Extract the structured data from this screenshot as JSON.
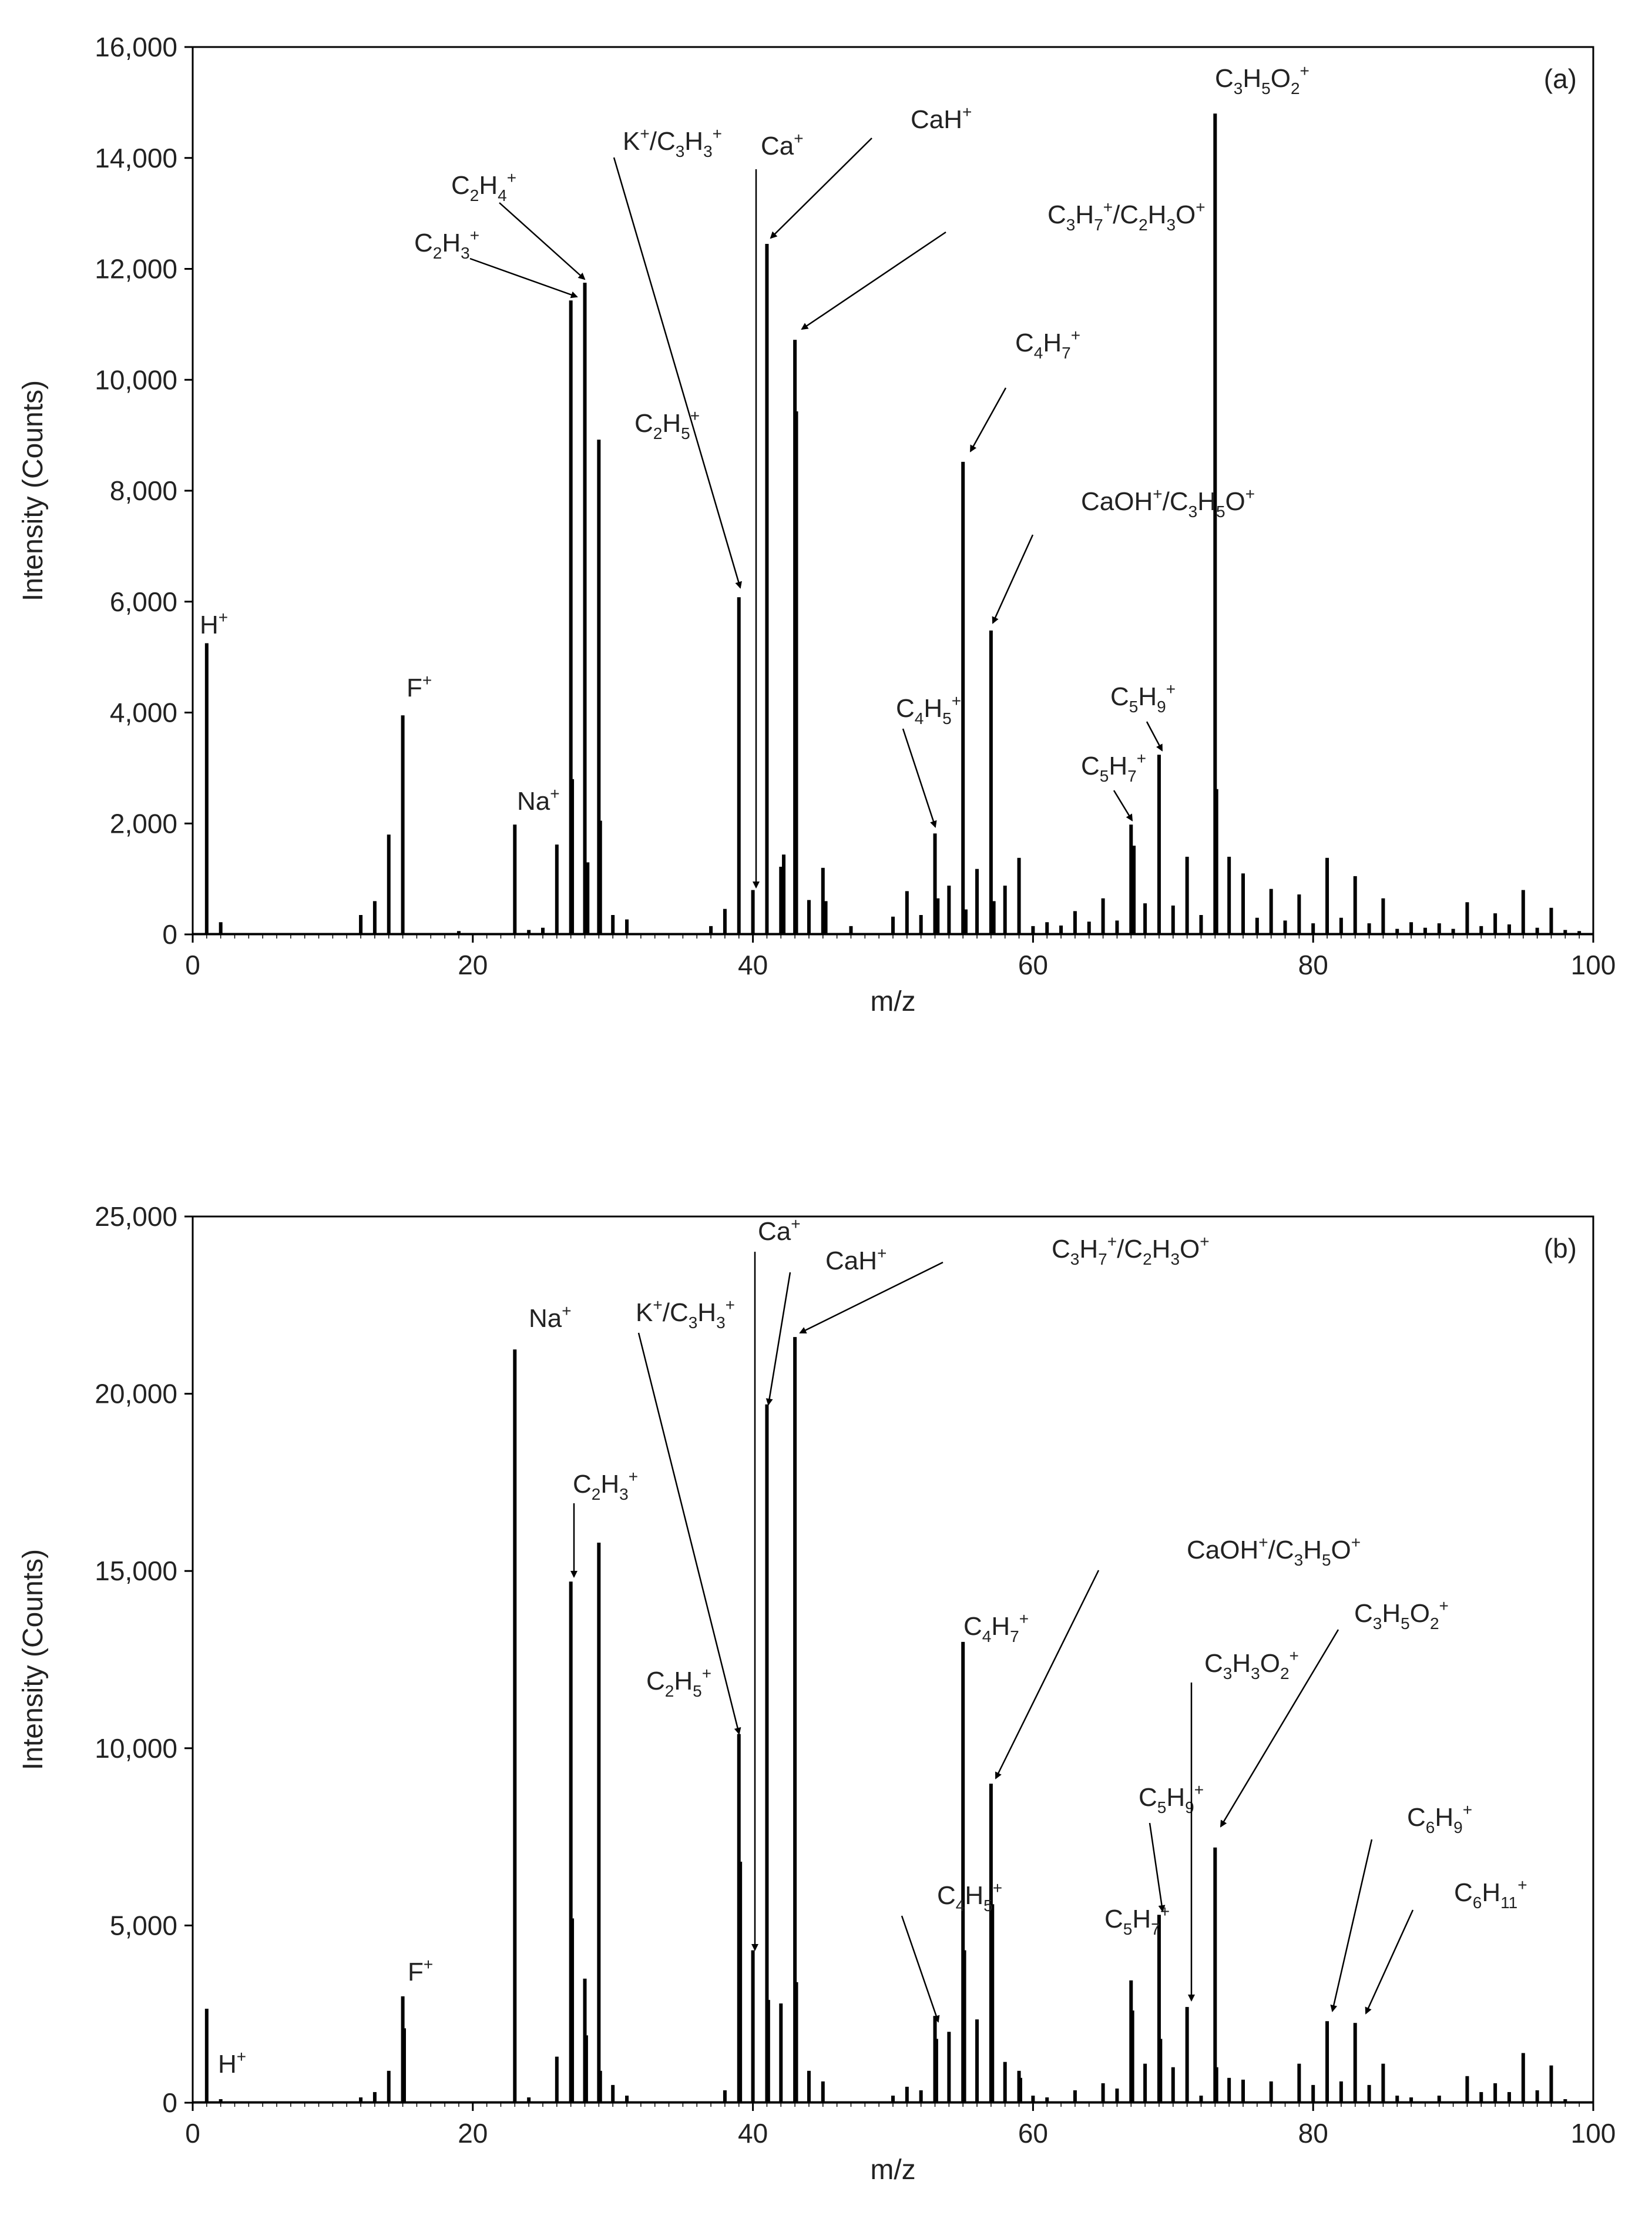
{
  "chart_data": [
    {
      "type": "bar",
      "panel_label": "(a)",
      "xlabel": "m/z",
      "ylabel": "Intensity (Counts)",
      "xlim": [
        0,
        100
      ],
      "ylim": [
        0,
        16000
      ],
      "xticks": [
        0,
        20,
        40,
        60,
        80,
        100
      ],
      "yticks": [
        0,
        2000,
        4000,
        6000,
        8000,
        10000,
        12000,
        14000,
        16000
      ],
      "ytick_labels": [
        "0",
        "2,000",
        "4,000",
        "6,000",
        "8,000",
        "10,000",
        "12,000",
        "14,000",
        "16,000"
      ],
      "x": [
        1,
        2,
        12,
        13,
        14,
        15,
        19,
        23,
        24,
        25,
        26,
        27,
        27.1,
        28,
        28.2,
        29,
        29.1,
        30,
        31,
        37,
        38,
        39,
        40,
        41,
        42,
        42.2,
        43,
        43.1,
        44,
        45,
        45.2,
        47,
        50,
        51,
        52,
        53,
        53.2,
        54,
        55,
        55.2,
        56,
        57,
        57.2,
        58,
        59,
        60,
        61,
        62,
        63,
        64,
        65,
        66,
        67,
        67.2,
        68,
        69,
        70,
        71,
        72,
        73,
        73.1,
        74,
        75,
        76,
        77,
        78,
        79,
        80,
        81,
        82,
        83,
        84,
        85,
        86,
        87,
        88,
        89,
        90,
        91,
        92,
        93,
        94,
        95,
        96,
        97,
        98,
        99
      ],
      "values": [
        5250,
        220,
        350,
        600,
        1800,
        3950,
        60,
        1980,
        80,
        120,
        1620,
        11430,
        2800,
        11750,
        1300,
        8920,
        2050,
        350,
        270,
        150,
        460,
        6080,
        800,
        12450,
        1220,
        1440,
        10720,
        9430,
        620,
        1200,
        600,
        150,
        320,
        780,
        350,
        1820,
        650,
        880,
        8520,
        450,
        1180,
        5480,
        600,
        880,
        1380,
        150,
        220,
        160,
        420,
        230,
        650,
        250,
        1980,
        1600,
        560,
        3240,
        520,
        1400,
        350,
        14800,
        2620,
        1400,
        1100,
        300,
        820,
        250,
        720,
        200,
        1380,
        300,
        1050,
        200,
        650,
        100,
        220,
        120,
        200,
        100,
        580,
        150,
        380,
        180,
        800,
        120,
        480,
        80,
        60
      ],
      "annotations": [
        {
          "ion_html": "H<tspan dy=\"-16\" font-size=\"26\">+</tspan>",
          "label": "H⁺",
          "x": 1,
          "y": 5250
        },
        {
          "ion_html": "F<tspan dy=\"-16\" font-size=\"26\">+</tspan>",
          "label": "F⁺",
          "x": 15,
          "y": 3950
        },
        {
          "ion_html": "Na<tspan dy=\"-16\" font-size=\"26\">+</tspan>",
          "label": "Na⁺",
          "x": 23,
          "y": 1980
        },
        {
          "label": "C₂H₃⁺",
          "x": 27,
          "y": 11430
        },
        {
          "label": "C₂H₄⁺",
          "x": 28,
          "y": 11750
        },
        {
          "label": "C₂H₅⁺",
          "x": 29,
          "y": 8920
        },
        {
          "label": "K⁺/C₃H₃⁺",
          "x": 39,
          "y": 6080
        },
        {
          "label": "Ca⁺",
          "x": 40,
          "y": 800
        },
        {
          "label": "CaH⁺",
          "x": 41,
          "y": 12450
        },
        {
          "label": "C₃H₇⁺/C₂H₃O⁺",
          "x": 43,
          "y": 10720
        },
        {
          "label": "C₄H₅⁺",
          "x": 53,
          "y": 1820
        },
        {
          "label": "C₄H₇⁺",
          "x": 55,
          "y": 8520
        },
        {
          "label": "CaOH⁺/C₃H₅O⁺",
          "x": 57,
          "y": 5480
        },
        {
          "label": "C₅H₇⁺",
          "x": 67,
          "y": 1980
        },
        {
          "label": "C₅H₉⁺",
          "x": 69,
          "y": 3240
        },
        {
          "label": "C₃H₅O₂⁺",
          "x": 73,
          "y": 14800
        }
      ]
    },
    {
      "type": "bar",
      "panel_label": "(b)",
      "xlabel": "m/z",
      "ylabel": "Intensity (Counts)",
      "xlim": [
        0,
        100
      ],
      "ylim": [
        0,
        25000
      ],
      "xticks": [
        0,
        20,
        40,
        60,
        80,
        100
      ],
      "yticks": [
        0,
        5000,
        10000,
        15000,
        20000,
        25000
      ],
      "ytick_labels": [
        "0",
        "5,000",
        "10,000",
        "15,000",
        "20,000",
        "25,000"
      ],
      "x": [
        1,
        2,
        12,
        13,
        14,
        15,
        15.1,
        23,
        24,
        26,
        27,
        27.1,
        28,
        28.1,
        29,
        29.1,
        30,
        31,
        38,
        39,
        39.1,
        40,
        41,
        41.1,
        42,
        43,
        43.1,
        44,
        45,
        50,
        51,
        52,
        53,
        53.1,
        54,
        55,
        55.1,
        56,
        57,
        57.1,
        58,
        59,
        59.1,
        60,
        61,
        63,
        65,
        66,
        67,
        67.1,
        68,
        69,
        69.1,
        70,
        71,
        72,
        73,
        73.1,
        74,
        75,
        77,
        79,
        80,
        81,
        82,
        83,
        84,
        85,
        86,
        87,
        89,
        91,
        92,
        93,
        94,
        95,
        96,
        97,
        98
      ],
      "values": [
        2650,
        100,
        150,
        300,
        900,
        3000,
        2100,
        21250,
        150,
        1300,
        14700,
        5200,
        3500,
        1900,
        15800,
        900,
        500,
        200,
        350,
        10400,
        6800,
        4300,
        19700,
        2900,
        2800,
        21600,
        3400,
        900,
        600,
        200,
        450,
        350,
        2450,
        1800,
        2000,
        13000,
        4300,
        2350,
        9000,
        5600,
        1150,
        900,
        700,
        200,
        150,
        350,
        550,
        400,
        3450,
        2600,
        1100,
        5300,
        1800,
        1000,
        2700,
        200,
        7200,
        1000,
        700,
        650,
        600,
        1100,
        500,
        2300,
        600,
        2250,
        500,
        1100,
        200,
        150,
        200,
        750,
        300,
        550,
        300,
        1400,
        350,
        1050,
        100
      ],
      "annotations": [
        {
          "label": "H⁺",
          "x": 1,
          "y": 2650
        },
        {
          "label": "F⁺",
          "x": 15,
          "y": 3000
        },
        {
          "label": "Na⁺",
          "x": 23,
          "y": 21250
        },
        {
          "label": "C₂H₃⁺",
          "x": 27,
          "y": 14700
        },
        {
          "label": "C₂H₅⁺",
          "x": 29,
          "y": 15800
        },
        {
          "label": "K⁺/C₃H₃⁺",
          "x": 39,
          "y": 10400
        },
        {
          "label": "Ca⁺",
          "x": 40,
          "y": 4300
        },
        {
          "label": "CaH⁺",
          "x": 41,
          "y": 19700
        },
        {
          "label": "C₃H₇⁺/C₂H₃O⁺",
          "x": 43,
          "y": 21600
        },
        {
          "label": "C₄H₅⁺",
          "x": 53,
          "y": 2450
        },
        {
          "label": "C₄H₇⁺",
          "x": 55,
          "y": 13000
        },
        {
          "label": "CaOH⁺/C₃H₅O⁺",
          "x": 57,
          "y": 9000
        },
        {
          "label": "C₅H₇⁺",
          "x": 67,
          "y": 3450
        },
        {
          "label": "C₅H₉⁺",
          "x": 69,
          "y": 5300
        },
        {
          "label": "C₃H₃O₂⁺",
          "x": 71,
          "y": 2700
        },
        {
          "label": "C₃H₅O₂⁺",
          "x": 73,
          "y": 7200
        },
        {
          "label": "C₆H₉⁺",
          "x": 81,
          "y": 2300
        },
        {
          "label": "C₆H₁₁⁺",
          "x": 83,
          "y": 2250
        }
      ]
    }
  ]
}
